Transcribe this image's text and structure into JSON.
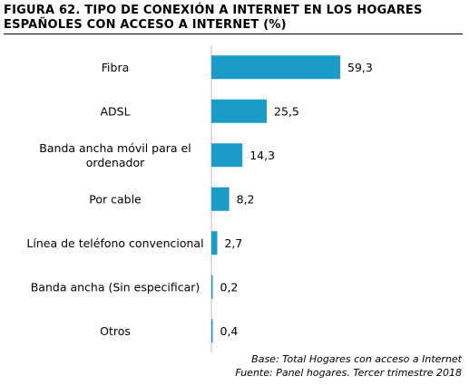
{
  "title_line1": "FIGURA 62. TIPO DE CONEXIÓN A INTERNET EN LOS HOGARES",
  "title_line2": "ESPAÑOLES CON ACCESO A INTERNET (%)",
  "footnote_base": "Base: Total Hogares con acceso a Internet",
  "footnote_source": "Fuente: Panel hogares. Tercer trimestre 2018",
  "chart_data": {
    "type": "bar",
    "orientation": "horizontal",
    "title": "FIGURA 62. TIPO DE CONEXIÓN A INTERNET EN LOS HOGARES ESPAÑOLES CON ACCESO A INTERNET (%)",
    "categories": [
      [
        "Fibra"
      ],
      [
        "ADSL"
      ],
      [
        "Banda ancha móvil para el",
        "ordenador"
      ],
      [
        "Por cable"
      ],
      [
        "Línea de teléfono convencional"
      ],
      [
        "Banda ancha (Sin especificar)"
      ],
      [
        "Otros"
      ]
    ],
    "values": [
      59.3,
      25.5,
      14.3,
      8.2,
      2.7,
      0.2,
      0.4
    ],
    "value_labels": [
      "59,3",
      "25,5",
      "14,3",
      "8,2",
      "2,7",
      "0,2",
      "0,4"
    ],
    "xlim": [
      0,
      59.3
    ],
    "grid": false,
    "bar_color": "#1b9bc7"
  }
}
